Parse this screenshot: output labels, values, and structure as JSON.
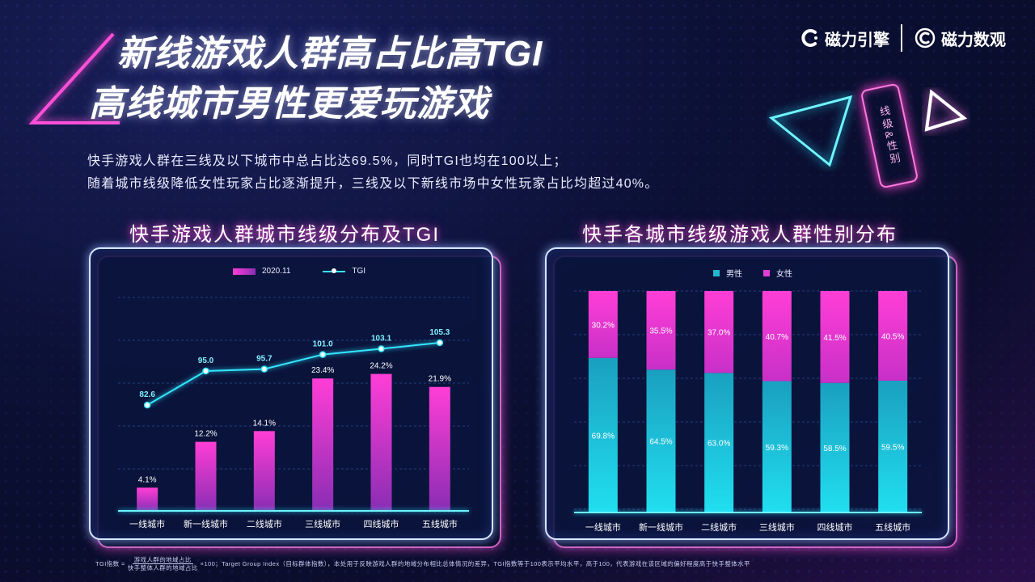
{
  "title": {
    "line1": "新线游戏人群高占比高TGI",
    "line2": "高线城市男性更爱玩游戏"
  },
  "brand": {
    "left": "磁力引擎",
    "right": "磁力数观"
  },
  "description": {
    "line1": "快手游戏人群在三线及以下城市中总占比达69.5%，同时TGI也均在100以上；",
    "line2": "随着城市线级降低女性玩家占比逐渐提升，三线及以下新线市场中女性玩家占比均超过40%。"
  },
  "tag": "线级&性别",
  "colors": {
    "pink": "#ff3ed6",
    "cyan": "#21dff0",
    "tgi_line": "#34e6ff"
  },
  "chart_data": [
    {
      "type": "bar",
      "title": "快手游戏人群城市线级分布及TGI",
      "categories": [
        "一线城市",
        "新一线城市",
        "二线城市",
        "三线城市",
        "四线城市",
        "五线城市"
      ],
      "series": [
        {
          "name": "2020.11",
          "type": "bar",
          "values": [
            4.1,
            12.2,
            14.1,
            23.4,
            24.2,
            21.9
          ],
          "labels": [
            "4.1%",
            "12.2%",
            "14.1%",
            "23.4%",
            "24.2%",
            "21.9%"
          ]
        },
        {
          "name": "TGI",
          "type": "line",
          "values": [
            82.6,
            95.0,
            95.7,
            101.0,
            103.1,
            105.3
          ],
          "labels": [
            "82.6",
            "95.0",
            "95.7",
            "101.0",
            "103.1",
            "105.3"
          ]
        }
      ],
      "grid": true,
      "legend": "top-center"
    },
    {
      "type": "bar",
      "stacked": true,
      "title": "快手各城市线级游戏人群性别分布",
      "categories": [
        "一线城市",
        "新一线城市",
        "二线城市",
        "三线城市",
        "四线城市",
        "五线城市"
      ],
      "series": [
        {
          "name": "男性",
          "values": [
            69.8,
            64.5,
            63.0,
            59.3,
            58.5,
            59.5
          ],
          "labels": [
            "69.8%",
            "64.5%",
            "63.0%",
            "59.3%",
            "58.5%",
            "59.5%"
          ]
        },
        {
          "name": "女性",
          "values": [
            30.2,
            35.5,
            37.0,
            40.7,
            41.5,
            40.5
          ],
          "labels": [
            "30.2%",
            "35.5%",
            "37.0%",
            "40.7%",
            "41.5%",
            "40.5%"
          ]
        }
      ],
      "grid": true,
      "legend": "top-center"
    }
  ],
  "footnote": {
    "prefix": "TGI指数 =",
    "numerator": "游戏人群的地域占比",
    "denominator": "快手整体人群的地域占比",
    "suffix": "×100；Target Group Index（目标群体指数），本处用于反映游戏人群的地域分布相比总体情况的差异，TGI指数等于100表示平均水平，高于100，代表游戏在该区域的偏好程度高于快手整体水平"
  }
}
